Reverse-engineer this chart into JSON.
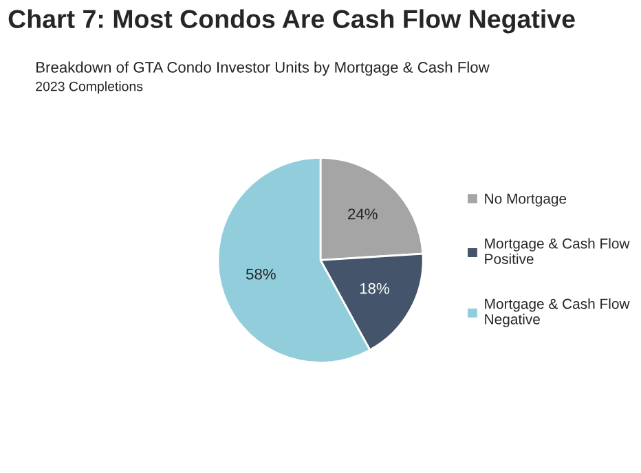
{
  "chart_data": {
    "type": "pie",
    "title": "Chart 7: Most Condos Are Cash Flow Negative",
    "subtitle": "Breakdown of GTA Condo Investor Units by Mortgage & Cash Flow",
    "annotations": [
      "2023 Completions"
    ],
    "categories": [
      "No Mortgage",
      "Mortgage & Cash Flow\nPositive",
      "Mortgage & Cash Flow\nNegative"
    ],
    "values": [
      24,
      18,
      58
    ],
    "colors": [
      "#a5a5a5",
      "#44546a",
      "#92cddc"
    ],
    "value_labels": [
      "24%",
      "18%",
      "58%"
    ],
    "legend": "right"
  }
}
